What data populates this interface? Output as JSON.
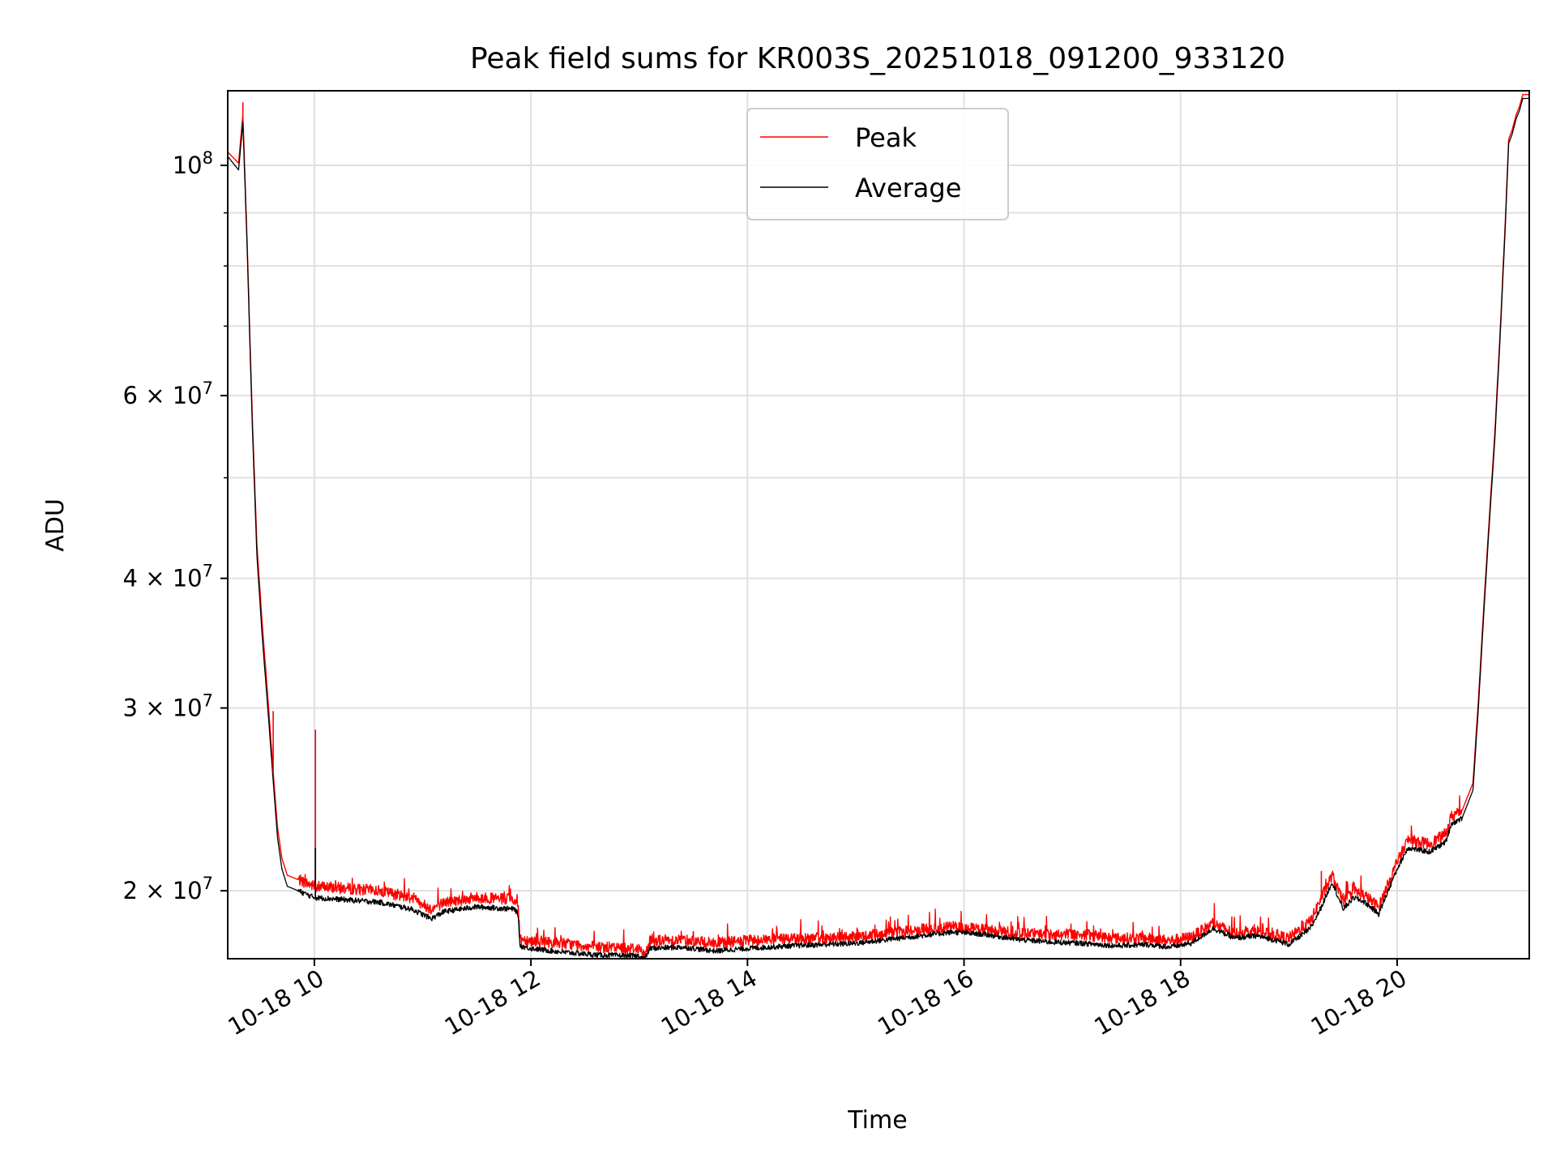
{
  "chart_data": {
    "type": "line",
    "title": "Peak field sums for KR003S_20251018_091200_933120",
    "xlabel": "Time",
    "ylabel": "ADU",
    "yscale": "log",
    "xlim": [
      9.2,
      21.22
    ],
    "ylim": [
      17200000,
      118000000
    ],
    "grid": true,
    "legend_position": "top-center",
    "x_ticks": [
      {
        "value": 10,
        "label": "10-18 10"
      },
      {
        "value": 12,
        "label": "10-18 12"
      },
      {
        "value": 14,
        "label": "10-18 14"
      },
      {
        "value": 16,
        "label": "10-18 16"
      },
      {
        "value": 18,
        "label": "10-18 18"
      },
      {
        "value": 20,
        "label": "10-18 20"
      }
    ],
    "y_ticks": [
      {
        "value": 20000000,
        "base": "2",
        "exp": "7"
      },
      {
        "value": 30000000,
        "base": "3",
        "exp": "7"
      },
      {
        "value": 40000000,
        "base": "4",
        "exp": "7"
      },
      {
        "value": 60000000,
        "base": "6",
        "exp": "7"
      },
      {
        "value": 100000000,
        "base": "",
        "exp": "8"
      }
    ],
    "y_minor_ticks": [
      50000000,
      70000000,
      80000000,
      90000000
    ],
    "series": [
      {
        "name": "Average",
        "color": "#000000",
        "x": [
          9.2,
          9.3,
          9.34,
          9.38,
          9.4,
          9.43,
          9.47,
          9.52,
          9.57,
          9.62,
          9.66,
          9.7,
          9.75,
          9.85,
          10.0,
          10.3,
          10.6,
          10.9,
          11.08,
          11.2,
          11.5,
          11.85,
          11.88,
          11.9,
          12.0,
          12.3,
          12.6,
          13.0,
          13.05,
          13.1,
          13.4,
          13.7,
          14.0,
          14.4,
          14.7,
          15.0,
          15.3,
          15.6,
          15.9,
          16.2,
          16.5,
          16.8,
          17.1,
          17.4,
          17.7,
          17.9,
          18.1,
          18.3,
          18.5,
          18.7,
          18.9,
          19.0,
          19.2,
          19.3,
          19.4,
          19.5,
          19.6,
          19.7,
          19.83,
          19.9,
          20.0,
          20.1,
          20.3,
          20.45,
          20.5,
          20.6,
          20.7,
          20.75,
          20.8,
          20.85,
          20.9,
          20.95,
          21.0,
          21.03,
          21.06,
          21.1,
          21.13,
          21.16,
          21.22
        ],
        "values": [
          102000000,
          99000000,
          110000000,
          83000000,
          70000000,
          55000000,
          42000000,
          35000000,
          30000000,
          25500000,
          22500000,
          21000000,
          20200000,
          20000000,
          19700000,
          19600000,
          19500000,
          19200000,
          18800000,
          19100000,
          19300000,
          19200000,
          19000000,
          17700000,
          17600000,
          17450000,
          17350000,
          17300000,
          17200000,
          17600000,
          17650000,
          17500000,
          17600000,
          17700000,
          17750000,
          17800000,
          17950000,
          18100000,
          18250000,
          18150000,
          17950000,
          17850000,
          17800000,
          17700000,
          17750000,
          17650000,
          17800000,
          18400000,
          18000000,
          18100000,
          17900000,
          17750000,
          18400000,
          19300000,
          20400000,
          19200000,
          19700000,
          19500000,
          19000000,
          19800000,
          21000000,
          22000000,
          21800000,
          22300000,
          23200000,
          23500000,
          25000000,
          30000000,
          37000000,
          45000000,
          54000000,
          68000000,
          88000000,
          105000000,
          107000000,
          111000000,
          113000000,
          116000000,
          116000000
        ]
      },
      {
        "name": "Peak",
        "color": "#ff0000",
        "x": [
          9.2,
          9.3,
          9.34,
          9.38,
          9.4,
          9.43,
          9.47,
          9.52,
          9.57,
          9.62,
          9.66,
          9.7,
          9.75,
          9.85,
          10.0,
          10.3,
          10.6,
          10.9,
          11.08,
          11.2,
          11.5,
          11.85,
          11.88,
          11.9,
          12.0,
          12.3,
          12.6,
          13.0,
          13.05,
          13.1,
          13.4,
          13.7,
          14.0,
          14.4,
          14.7,
          15.0,
          15.3,
          15.6,
          15.9,
          16.2,
          16.5,
          16.8,
          17.1,
          17.4,
          17.7,
          17.9,
          18.1,
          18.3,
          18.5,
          18.7,
          18.9,
          19.0,
          19.2,
          19.3,
          19.4,
          19.5,
          19.6,
          19.7,
          19.83,
          19.9,
          20.0,
          20.1,
          20.3,
          20.45,
          20.5,
          20.6,
          20.7,
          20.75,
          20.8,
          20.85,
          20.9,
          20.95,
          21.0,
          21.03,
          21.06,
          21.1,
          21.13,
          21.16,
          21.22
        ],
        "values": [
          103000000,
          100500000,
          112000000,
          84000000,
          71000000,
          56000000,
          43000000,
          36000000,
          30800000,
          26000000,
          23000000,
          21500000,
          20700000,
          20500000,
          20200000,
          20100000,
          20000000,
          19700000,
          19200000,
          19500000,
          19700000,
          19600000,
          19400000,
          18000000,
          17900000,
          17800000,
          17650000,
          17600000,
          17300000,
          17900000,
          17950000,
          17800000,
          17900000,
          18000000,
          18000000,
          18050000,
          18200000,
          18350000,
          18450000,
          18350000,
          18200000,
          18150000,
          18150000,
          18000000,
          18000000,
          17900000,
          18050000,
          18600000,
          18200000,
          18300000,
          18100000,
          18000000,
          18700000,
          19700000,
          20700000,
          19500000,
          20000000,
          19800000,
          19300000,
          20100000,
          21300000,
          22400000,
          22200000,
          22700000,
          23600000,
          23900000,
          25400000,
          30500000,
          37600000,
          45600000,
          54800000,
          68800000,
          89000000,
          106000000,
          108000000,
          112000000,
          114000000,
          117000000,
          117000000
        ]
      }
    ],
    "spikes": [
      {
        "series": "Peak",
        "x": 9.34,
        "value": 115000000
      },
      {
        "series": "Peak",
        "x": 9.62,
        "value": 29800000
      },
      {
        "series": "Peak",
        "x": 10.01,
        "value": 28600000
      },
      {
        "series": "Average",
        "x": 10.01,
        "value": 22000000
      },
      {
        "series": "Peak",
        "x": 12.05,
        "value": 18200000
      },
      {
        "series": "Peak",
        "x": 13.5,
        "value": 18250000
      },
      {
        "series": "Peak",
        "x": 15.9,
        "value": 18700000
      },
      {
        "series": "Peak",
        "x": 16.45,
        "value": 18500000
      },
      {
        "series": "Peak",
        "x": 18.3,
        "value": 18600000
      },
      {
        "series": "Peak",
        "x": 18.6,
        "value": 18500000
      },
      {
        "series": "Peak",
        "x": 19.3,
        "value": 20900000
      }
    ]
  }
}
